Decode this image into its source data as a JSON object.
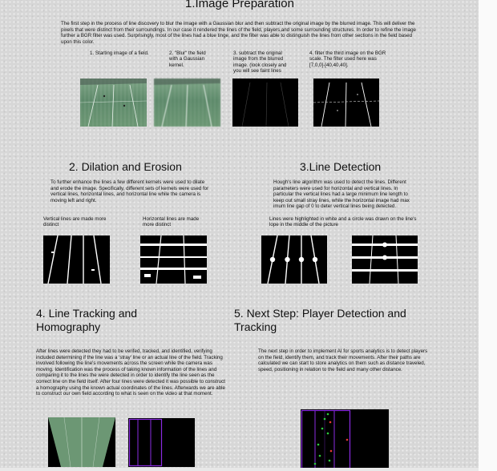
{
  "section1": {
    "title": "1.Image Preparation",
    "paragraph": "The first step in the process of line discovery to blur the image with a Gaussian blur and then subtract the original image by the blurred image. This will deliver the pixels that were distinct from their surroundings. In our case it rendered the lines of the field, players,and some surrounding structures. In order to refine the image further a BGR filter was used. Surprisingly, most of the lines had a blue tinge, and the filter was able to distinguish the lines from other sections in the field based upon this color.",
    "steps": [
      "1. Starting image of a field.",
      "2. \"Blur\" the field with a Gaussian kernel.",
      "3. subtract the original image from the blurred image. (look closely and you will see faint lines",
      "4. filter the third image on the BGR scale. The filter used here was [7,0,0]-[40,40,40]."
    ]
  },
  "section2": {
    "title": "2. Dilation and Erosion",
    "paragraph": "To further enhance the lines a few different kernels were used to dilate and erode the image. Specifically, different sets of kernels were used for vertical lines, horizontal lines, and horizontal line while the camera is moving left and right.",
    "captions": [
      "Vertical lines are made more distinct",
      "Horizontal lines are made more distinct"
    ]
  },
  "section3": {
    "title": "3.Line Detection",
    "paragraph": "Hough's line algorithm was used to detect the lines. Different parameters were used for horizontal and vertical lines. In particular the vertical lines had a large minimum line length to keep out small stray lines, while the horizontal image had max imum line gap of 0 to deter vertical lines being detected.",
    "caption": "Lines were highlighted in white and a circle was drawn on the line's lope in the middle of the picture"
  },
  "section4": {
    "title_line1": "4. Line Tracking and",
    "title_line2": "Homography",
    "paragraph": "After lines were detected they had to be verifed, tracked, and identified, verifying included determining if the line was a 'stray' line or an actual line of the field. Tracking involved following the line's movements across the screen while the camera was moving. Identification was the process of taking known information of the lines and comparing it to the lines the were detected in order to identify the line seen as the correct line on the field itself. After four lines were detected it was possible to construct a homography using the known actual coordinates of the lines. Afterwards we are able to construct our own field according to what is seen on the video at that moment."
  },
  "section5": {
    "title_line1": "5. Next Step: Player Detection and",
    "title_line2": "Tracking",
    "paragraph": "The next step in order to implement AI for sports analytics is to detect players on the field, identify them, and track their movements. After their paths are calculated we can start to store analytics on them such as distance traveled, speed, positioning in relation to the field and many other distance."
  },
  "colors": {
    "accent_purple": "#8a2be2",
    "marker_green": "#2ecc40",
    "marker_red": "#e53935",
    "field_green": "#6c9774"
  }
}
